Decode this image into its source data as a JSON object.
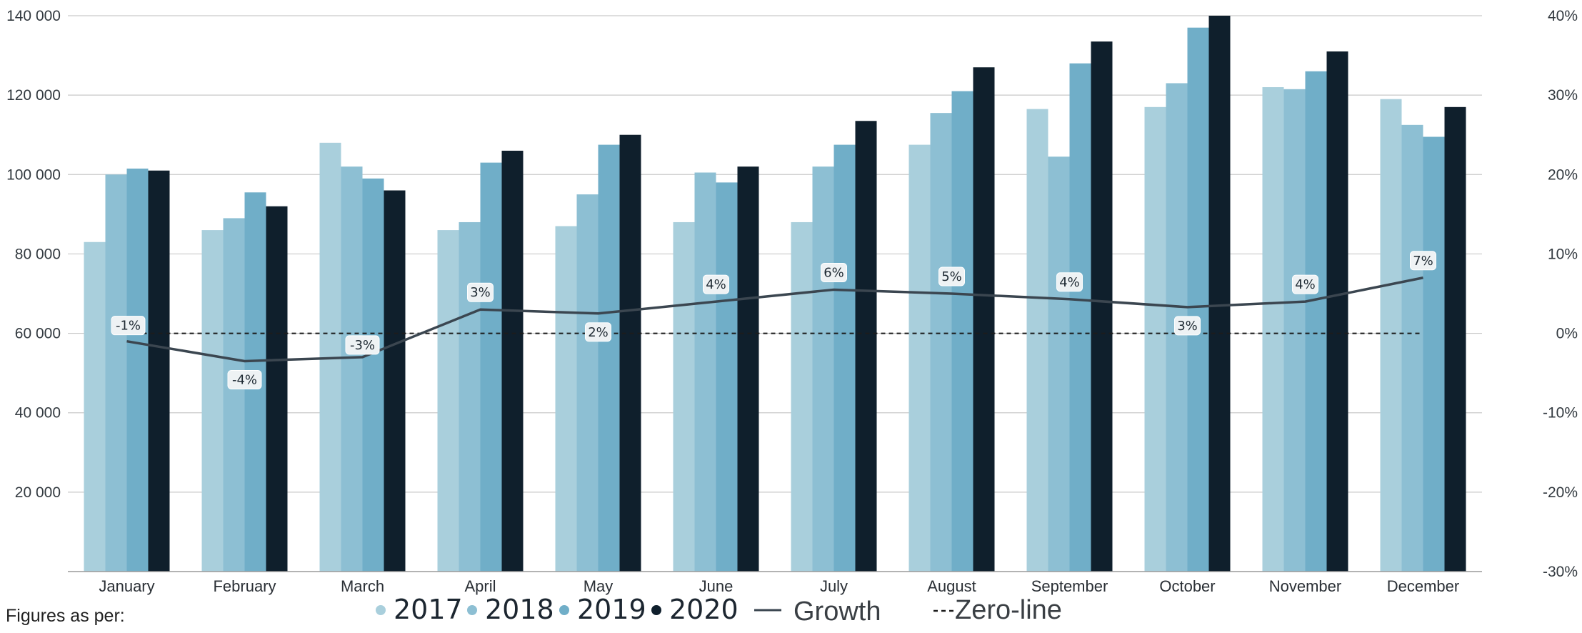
{
  "footer_text": "Figures as per:",
  "chart_data": {
    "type": "bar",
    "categories": [
      "January",
      "February",
      "March",
      "April",
      "May",
      "June",
      "July",
      "August",
      "September",
      "October",
      "November",
      "December"
    ],
    "series": [
      {
        "name": "2017",
        "values": [
          83000,
          86000,
          108000,
          86000,
          87000,
          88000,
          88000,
          107500,
          116500,
          117000,
          122000,
          119000
        ],
        "color": "#a9cfdc"
      },
      {
        "name": "2018",
        "values": [
          100000,
          89000,
          102000,
          88000,
          95000,
          100500,
          102000,
          115500,
          104500,
          123000,
          121500,
          112500
        ],
        "color": "#8dbfd3"
      },
      {
        "name": "2019",
        "values": [
          101500,
          95500,
          99000,
          103000,
          107500,
          98000,
          107500,
          121000,
          128000,
          137000,
          126000,
          109500
        ],
        "color": "#70aec8"
      },
      {
        "name": "2020",
        "values": [
          101000,
          92000,
          96000,
          106000,
          110000,
          102000,
          113500,
          127000,
          133500,
          140000,
          131000,
          117000
        ],
        "color": "#0f1f2c"
      }
    ],
    "growth": {
      "name": "Growth",
      "values": [
        -1,
        -4,
        -3,
        3,
        2,
        4,
        6,
        5,
        4,
        3,
        4,
        7
      ],
      "line_values": [
        -1,
        -3.5,
        -3,
        3,
        2.5,
        4,
        5.5,
        5,
        4.3,
        3.3,
        4,
        7
      ],
      "labels": [
        "-1%",
        "-4%",
        "-3%",
        "3%",
        "2%",
        "4%",
        "6%",
        "5%",
        "4%",
        "3%",
        "4%",
        "7%"
      ],
      "color": "#3b4650"
    },
    "zero_line": {
      "name": "Zero-line",
      "value": 0
    },
    "y_left": {
      "min": 0,
      "max": 140000,
      "ticks": [
        20000,
        40000,
        60000,
        80000,
        100000,
        120000,
        140000
      ],
      "tick_labels": [
        "20 000",
        "40 000",
        "60 000",
        "80 000",
        "100 000",
        "120 000",
        "140 000"
      ]
    },
    "y_right": {
      "min": -30,
      "max": 40,
      "ticks": [
        -30,
        -20,
        -10,
        0,
        10,
        20,
        30,
        40
      ],
      "tick_labels": [
        "-30%",
        "-20%",
        "-10%",
        "0%",
        "10%",
        "20%",
        "30%",
        "40%"
      ]
    },
    "grid": true,
    "legend": {
      "position": "bottom",
      "items": [
        {
          "label": "2017",
          "type": "dot",
          "color": "#a9cfdc"
        },
        {
          "label": "2018",
          "type": "dot",
          "color": "#8dbfd3"
        },
        {
          "label": "2019",
          "type": "dot",
          "color": "#70aec8"
        },
        {
          "label": "2020",
          "type": "dot",
          "color": "#0f1f2c"
        },
        {
          "label": "Growth",
          "type": "line",
          "color": "#3b4650"
        },
        {
          "label": "Zero-line",
          "type": "dashed",
          "color": "#1c1c1c"
        }
      ]
    }
  }
}
